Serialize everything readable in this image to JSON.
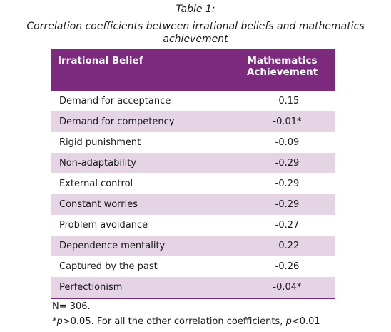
{
  "caption": {
    "label": "Table 1:",
    "title": "Correlation coefficients between irrational beliefs and mathematics achievement"
  },
  "table": {
    "headers": {
      "belief": "Irrational Belief",
      "math_line1": "Mathematics",
      "math_line2": "Achievement"
    },
    "rows": [
      {
        "belief": "Demand for acceptance",
        "value": "-0.15"
      },
      {
        "belief": "Demand for competency",
        "value": "-0.01*"
      },
      {
        "belief": "Rigid punishment",
        "value": "-0.09"
      },
      {
        "belief": "Non-adaptability",
        "value": "-0.29"
      },
      {
        "belief": "External control",
        "value": "-0.29"
      },
      {
        "belief": "Constant worries",
        "value": "-0.29"
      },
      {
        "belief": "Problem avoidance",
        "value": "-0.27"
      },
      {
        "belief": "Dependence mentality",
        "value": "-0.22"
      },
      {
        "belief": "Captured by the past",
        "value": "-0.26"
      },
      {
        "belief": "Perfectionism",
        "value": "-0.04*"
      }
    ]
  },
  "notes": {
    "n": "N= 306.",
    "sig_star": "*",
    "sig_p1": "p",
    "sig_mid": ">0.05. For all the other correlation coefficients, ",
    "sig_p2": "p",
    "sig_end": "<0.01"
  },
  "colors": {
    "header_bg": "#7b2a7e",
    "row_shade": "#e4d4e4"
  }
}
